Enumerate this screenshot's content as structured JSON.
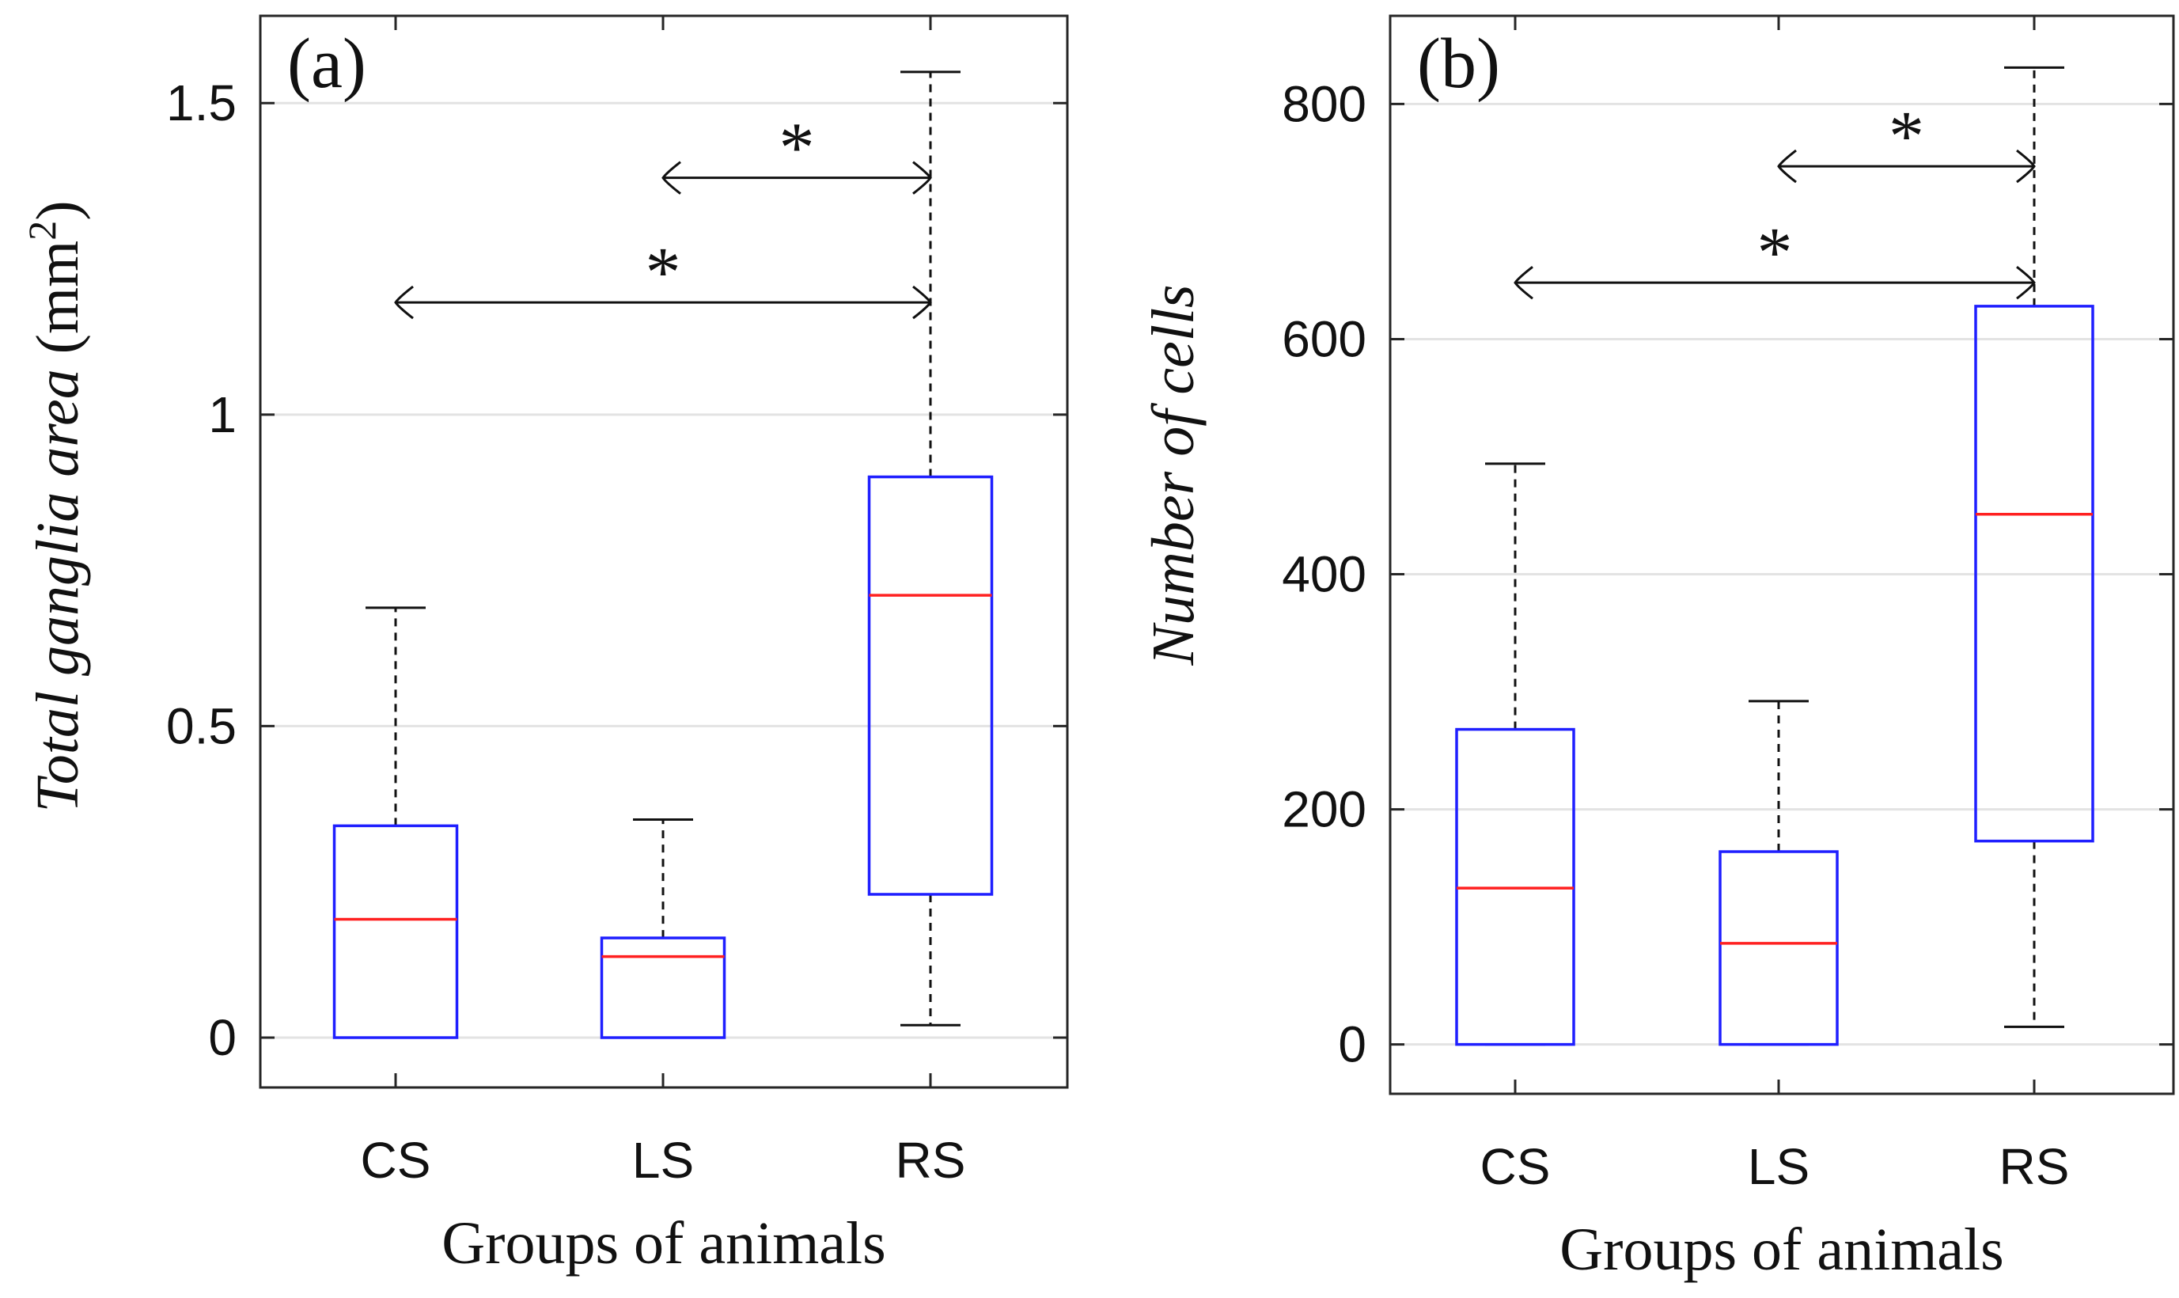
{
  "chart_data": [
    {
      "type": "box",
      "panel_label": "(a)",
      "xlabel": "Groups of animals",
      "ylabel_italic": "Total ganglia area",
      "ylabel_unit_pre": "(mm",
      "ylabel_unit_sup": "2",
      "ylabel_unit_post": ")",
      "categories": [
        "CS",
        "LS",
        "RS"
      ],
      "ylim": [
        -0.08,
        1.64
      ],
      "yticks": [
        0,
        0.5,
        1,
        1.5
      ],
      "ytick_labels": [
        "0",
        "0.5",
        "1",
        "1.5"
      ],
      "grid": "horizontal",
      "boxes": [
        {
          "group": "CS",
          "whisker_low": 0,
          "q1": 0,
          "median": 0.19,
          "q3": 0.34,
          "whisker_high": 0.69
        },
        {
          "group": "LS",
          "whisker_low": 0,
          "q1": 0,
          "median": 0.13,
          "q3": 0.16,
          "whisker_high": 0.35
        },
        {
          "group": "RS",
          "whisker_low": 0.02,
          "q1": 0.23,
          "median": 0.71,
          "q3": 0.9,
          "whisker_high": 1.55
        }
      ],
      "significance": [
        {
          "from": "LS",
          "to": "RS",
          "y": 1.38,
          "label": "*"
        },
        {
          "from": "CS",
          "to": "RS",
          "y": 1.18,
          "label": "*"
        }
      ],
      "colors": {
        "box": "#1f1fff",
        "median": "#ff2020",
        "whisker": "#111111",
        "grid": "#e3e3e3"
      }
    },
    {
      "type": "box",
      "panel_label": "(b)",
      "xlabel": "Groups of animals",
      "ylabel_italic": "Number of cells",
      "categories": [
        "CS",
        "LS",
        "RS"
      ],
      "ylim": [
        -42,
        875
      ],
      "yticks": [
        0,
        200,
        400,
        600,
        800
      ],
      "ytick_labels": [
        "0",
        "200",
        "400",
        "600",
        "800"
      ],
      "grid": "horizontal",
      "boxes": [
        {
          "group": "CS",
          "whisker_low": 0,
          "q1": 0,
          "median": 133,
          "q3": 268,
          "whisker_high": 494
        },
        {
          "group": "LS",
          "whisker_low": 0,
          "q1": 0,
          "median": 86,
          "q3": 164,
          "whisker_high": 292
        },
        {
          "group": "RS",
          "whisker_low": 15,
          "q1": 173,
          "median": 451,
          "q3": 628,
          "whisker_high": 831
        }
      ],
      "significance": [
        {
          "from": "LS",
          "to": "RS",
          "y": 747,
          "label": "*"
        },
        {
          "from": "CS",
          "to": "RS",
          "y": 648,
          "label": "*"
        }
      ],
      "colors": {
        "box": "#1f1fff",
        "median": "#ff2020",
        "whisker": "#111111",
        "grid": "#e3e3e3"
      }
    }
  ]
}
